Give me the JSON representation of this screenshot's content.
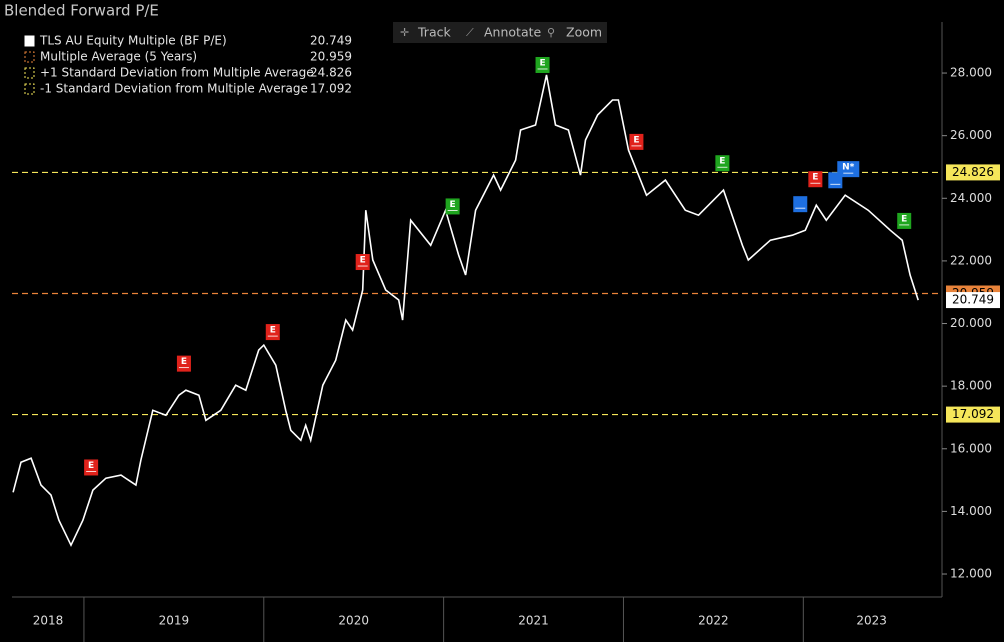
{
  "header": {
    "title": "Blended Forward P/E",
    "toolbar": [
      "Track",
      "Annotate",
      "Zoom"
    ]
  },
  "chart_data": {
    "type": "line",
    "xlim": [
      2018.6,
      2023.76
    ],
    "xticks": [
      2019,
      2020,
      2021,
      2022,
      2023
    ],
    "x_labels": [
      "2018",
      "2019",
      "2020",
      "2021",
      "2022",
      "2023"
    ],
    "ylim": [
      11.33,
      29.63
    ],
    "yticks": [
      {
        "value": 12,
        "label": "12.000"
      },
      {
        "value": 14,
        "label": "14.000"
      },
      {
        "value": 16,
        "label": "16.000"
      },
      {
        "value": 18,
        "label": "18.000"
      },
      {
        "value": 20,
        "label": "20.000"
      },
      {
        "value": 22,
        "label": "22.000"
      },
      {
        "value": 24,
        "label": "24.000"
      },
      {
        "value": 26,
        "label": "26.000"
      },
      {
        "value": 28,
        "label": "28.000"
      }
    ],
    "series": [
      {
        "name": "TLS AU Equity Multiple (BF P/E)",
        "color": "#ffffff",
        "x": [
          2018.606,
          2018.65,
          2018.706,
          2018.761,
          2018.817,
          2018.861,
          2018.928,
          2018.994,
          2019.05,
          2019.122,
          2019.206,
          2019.289,
          2019.317,
          2019.383,
          2019.456,
          2019.528,
          2019.567,
          2019.639,
          2019.678,
          2019.761,
          2019.844,
          2019.9,
          2019.972,
          2020.0,
          2020.067,
          2020.122,
          2020.15,
          2020.206,
          2020.233,
          2020.261,
          2020.328,
          2020.4,
          2020.456,
          2020.494,
          2020.55,
          2020.567,
          2020.606,
          2020.678,
          2020.75,
          2020.772,
          2020.817,
          2020.928,
          2021.011,
          2021.083,
          2021.122,
          2021.178,
          2021.278,
          2021.317,
          2021.4,
          2021.428,
          2021.511,
          2021.572,
          2021.622,
          2021.694,
          2021.761,
          2021.789,
          2021.856,
          2021.939,
          2021.972,
          2022.028,
          2022.128,
          2022.233,
          2022.344,
          2022.417,
          2022.556,
          2022.661,
          2022.694,
          2022.817,
          2022.939,
          2023.011,
          2023.072,
          2023.128,
          2023.233,
          2023.361,
          2023.483,
          2023.55,
          2023.594,
          2023.639
        ],
        "values": [
          14.61,
          15.57,
          15.7,
          14.84,
          14.52,
          13.72,
          12.92,
          13.72,
          14.68,
          15.06,
          15.16,
          14.84,
          15.64,
          17.23,
          17.07,
          17.71,
          17.87,
          17.71,
          16.91,
          17.23,
          18.03,
          17.87,
          19.15,
          19.31,
          18.67,
          17.23,
          16.59,
          16.27,
          16.75,
          16.27,
          18.03,
          18.83,
          20.11,
          19.79,
          21.07,
          23.62,
          22.03,
          21.07,
          20.75,
          20.11,
          23.3,
          22.5,
          23.62,
          22.19,
          21.55,
          23.62,
          24.74,
          24.26,
          25.22,
          26.18,
          26.34,
          27.94,
          26.34,
          26.18,
          24.74,
          25.86,
          26.66,
          27.14,
          27.14,
          25.54,
          24.1,
          24.58,
          23.62,
          23.46,
          24.26,
          22.5,
          22.03,
          22.66,
          22.82,
          22.98,
          23.78,
          23.3,
          24.1,
          23.62,
          22.98,
          22.66,
          21.55,
          20.749
        ]
      }
    ],
    "hlines": [
      {
        "name": "Multiple Average (5 Years)",
        "value": 20.959,
        "color": "#e8833a"
      },
      {
        "name": "+1 Standard Deviation from Multiple Average",
        "value": 24.826,
        "color": "#f5e65a"
      },
      {
        "name": "-1 Standard Deviation from Multiple Average",
        "value": 17.092,
        "color": "#f5e65a"
      }
    ],
    "events": [
      {
        "x": 2019.04,
        "label": "E",
        "color": "#e0221b"
      },
      {
        "x": 2019.556,
        "label": "E",
        "color": "#e0221b"
      },
      {
        "x": 2020.05,
        "label": "E",
        "color": "#e0221b"
      },
      {
        "x": 2020.55,
        "label": "E",
        "color": "#e0221b"
      },
      {
        "x": 2021.05,
        "label": "E",
        "color": "#1fa51f"
      },
      {
        "x": 2021.55,
        "label": "E",
        "color": "#1fa51f"
      },
      {
        "x": 2022.072,
        "label": "E",
        "color": "#e0221b"
      },
      {
        "x": 2022.55,
        "label": "E",
        "color": "#1fa51f"
      },
      {
        "x": 2022.983,
        "color": "#1e6fe0"
      },
      {
        "x": 2023.067,
        "label": "E",
        "color": "#e0221b"
      },
      {
        "x": 2023.178,
        "color": "#1e6fe0"
      },
      {
        "x": 2023.25,
        "label": "N*",
        "color": "#1e6fe0"
      },
      {
        "x": 2023.561,
        "label": "E",
        "color": "#1fa51f"
      }
    ]
  }
}
